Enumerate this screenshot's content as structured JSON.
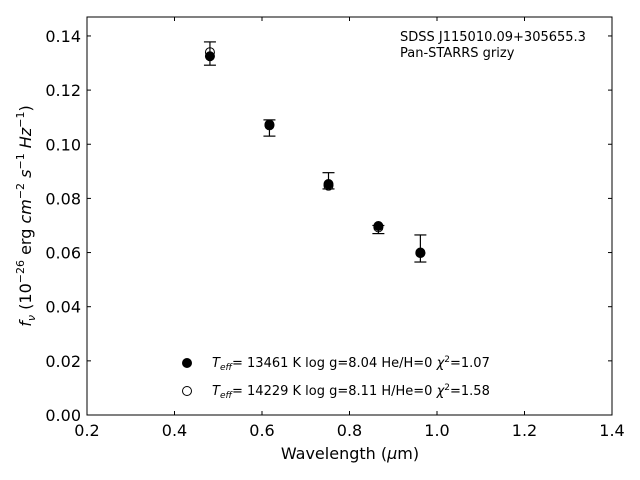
{
  "chart_data": {
    "type": "scatter",
    "annotation": [
      "SDSS J115010.09+305655.3",
      "Pan-STARRS grizy"
    ],
    "xlabel": "Wavelength (μm)",
    "ylabel": "fν (10⁻²⁶ erg cm⁻² s⁻¹ Hz⁻¹)",
    "xlim": [
      0.2,
      1.4
    ],
    "ylim": [
      0.0,
      0.147
    ],
    "x_ticks": [
      "0.2",
      "0.4",
      "0.6",
      "0.8",
      "1.0",
      "1.2",
      "1.4"
    ],
    "y_ticks": [
      "0.00",
      "0.02",
      "0.04",
      "0.06",
      "0.08",
      "0.10",
      "0.12",
      "0.14"
    ],
    "grid": false,
    "legend_position": "bottom-center",
    "observed": {
      "x": [
        0.481,
        0.617,
        0.752,
        0.866,
        0.962
      ],
      "y": [
        0.1335,
        0.106,
        0.0865,
        0.0685,
        0.0615
      ],
      "yerr": [
        0.0043,
        0.003,
        0.003,
        0.0015,
        0.005
      ]
    },
    "series": [
      {
        "name": "Teff= 13461 K  log g=8.04  He/H=0  χ²=1.07",
        "marker": "filled-circle",
        "x": [
          0.481,
          0.617,
          0.752,
          0.866,
          0.962
        ],
        "y": [
          0.1325,
          0.1073,
          0.0853,
          0.0698,
          0.06
        ]
      },
      {
        "name": "Teff= 14229 K  log g=8.11  H/He=0  χ²=1.58",
        "marker": "open-circle",
        "x": [
          0.481,
          0.617,
          0.752,
          0.866,
          0.962
        ],
        "y": [
          0.134,
          0.107,
          0.0847,
          0.0693,
          0.0598
        ]
      }
    ],
    "colors": {
      "marker": "#000000",
      "background": "#ffffff"
    }
  }
}
